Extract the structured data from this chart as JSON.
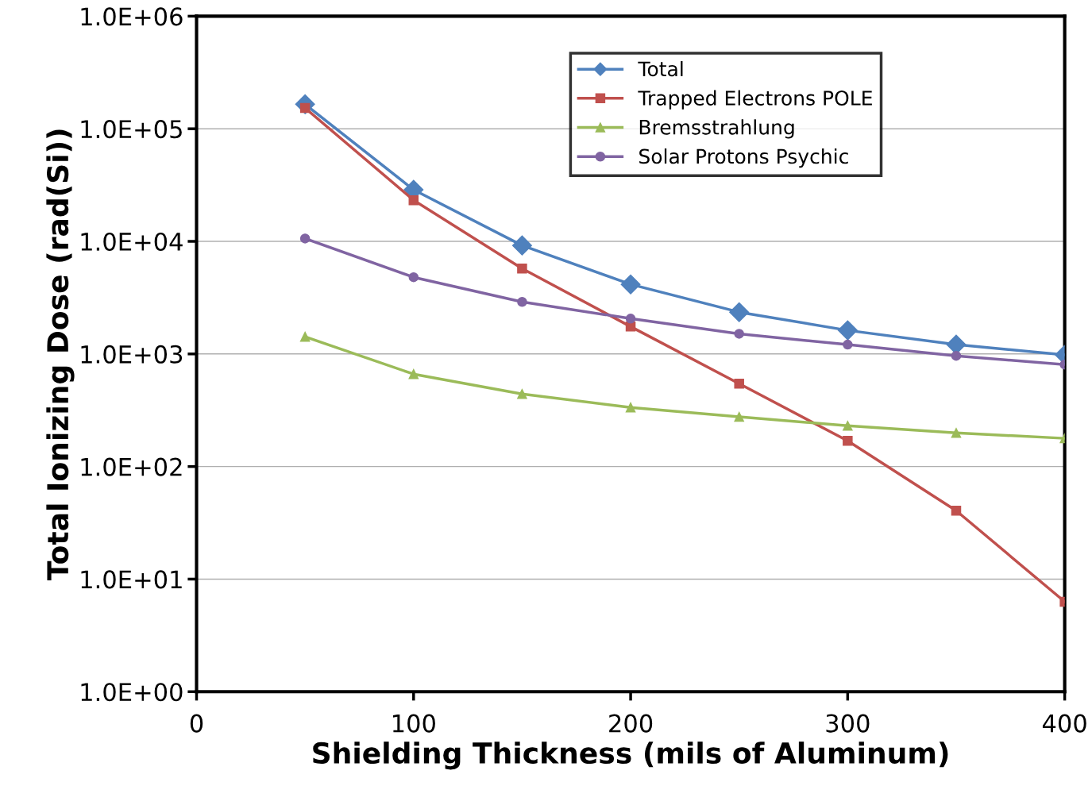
{
  "chart_data": {
    "type": "line",
    "xlabel": "Shielding Thickness (mils of Aluminum)",
    "ylabel": "Total Ionizing Dose (rad(Si))",
    "x": [
      50,
      100,
      150,
      200,
      250,
      300,
      350,
      400
    ],
    "series": [
      {
        "name": "Total",
        "color": "#4f81bd",
        "marker": "diamond",
        "values": [
          165000,
          28700,
          9200,
          4150,
          2350,
          1620,
          1210,
          980
        ]
      },
      {
        "name": "Trapped Electrons POLE",
        "color": "#c0504d",
        "marker": "square",
        "values": [
          153000,
          23200,
          5740,
          1750,
          545,
          169,
          40.5,
          6.3
        ]
      },
      {
        "name": "Bremsstrahlung",
        "color": "#9bbb59",
        "marker": "triangle",
        "values": [
          1420,
          662,
          441,
          335,
          276,
          230,
          199,
          178
        ]
      },
      {
        "name": "Solar Protons Psychic",
        "color": "#8064a2",
        "marker": "circle",
        "values": [
          10600,
          4800,
          2900,
          2060,
          1510,
          1210,
          962,
          805
        ]
      }
    ],
    "log": "y",
    "xlim": [
      0,
      400
    ],
    "xticks": [
      0,
      100,
      200,
      300,
      400
    ],
    "ylim": [
      1,
      1000000
    ],
    "yticks": [
      {
        "value": 1,
        "label": "1.0E+00"
      },
      {
        "value": 10,
        "label": "1.0E+01"
      },
      {
        "value": 100,
        "label": "1.0E+02"
      },
      {
        "value": 1000,
        "label": "1.0E+03"
      },
      {
        "value": 10000,
        "label": "1.0E+04"
      },
      {
        "value": 100000,
        "label": "1.0E+05"
      },
      {
        "value": 1000000,
        "label": "1.0E+06"
      }
    ],
    "grid": "y",
    "legend": "top right",
    "line_style": "solid"
  }
}
